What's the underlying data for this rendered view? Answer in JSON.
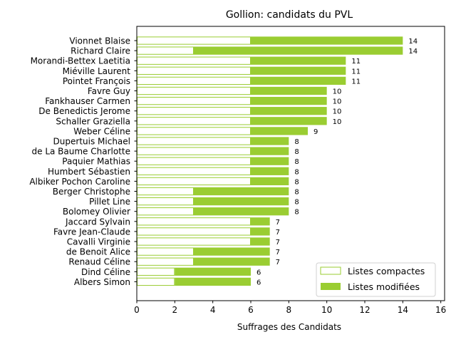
{
  "chart_data": {
    "type": "bar",
    "orientation": "horizontal",
    "stacked": true,
    "title": "Gollion: candidats du PVL",
    "xlabel": "Suffrages des Candidats",
    "ylabel": "",
    "xlim": [
      0,
      16.2
    ],
    "xticks": [
      0,
      2,
      4,
      6,
      8,
      10,
      12,
      14,
      16
    ],
    "grid": false,
    "legend_position": "lower-right",
    "colors": {
      "compact_edge": "#9acd32",
      "compact_fill": "#ffffff",
      "modified_fill": "#9acd32"
    },
    "categories": [
      "Vionnet Blaise",
      "Richard Claire",
      "Morandi-Bettex Laetitia",
      "Miéville Laurent",
      "Pointet François",
      "Favre Guy",
      "Fankhauser Carmen",
      "De Benedictis Jerome",
      "Schaller Graziella",
      "Weber Céline",
      "Dupertuis Michael",
      "de La Baume Charlotte",
      "Paquier Mathias",
      "Humbert Sébastien",
      "Albiker Pochon Caroline",
      "Berger Christophe",
      "Pillet Line",
      "Bolomey Olivier",
      "Jaccard Sylvain",
      "Favre Jean-Claude",
      "Cavalli Virginie",
      "de Benoit Alice",
      "Renaud Céline",
      "Dind Céline",
      "Albers Simon"
    ],
    "series": [
      {
        "name": "Listes compactes",
        "values": [
          6,
          3,
          6,
          6,
          6,
          6,
          6,
          6,
          6,
          6,
          6,
          6,
          6,
          6,
          6,
          3,
          3,
          3,
          6,
          6,
          6,
          3,
          3,
          2,
          2
        ]
      },
      {
        "name": "Listes modifiées",
        "values": [
          8,
          11,
          5,
          5,
          5,
          4,
          4,
          4,
          4,
          3,
          2,
          2,
          2,
          2,
          2,
          5,
          5,
          5,
          1,
          1,
          1,
          4,
          4,
          4,
          4
        ]
      }
    ],
    "totals": [
      14,
      14,
      11,
      11,
      11,
      10,
      10,
      10,
      10,
      9,
      8,
      8,
      8,
      8,
      8,
      8,
      8,
      8,
      7,
      7,
      7,
      7,
      7,
      6,
      6
    ]
  }
}
